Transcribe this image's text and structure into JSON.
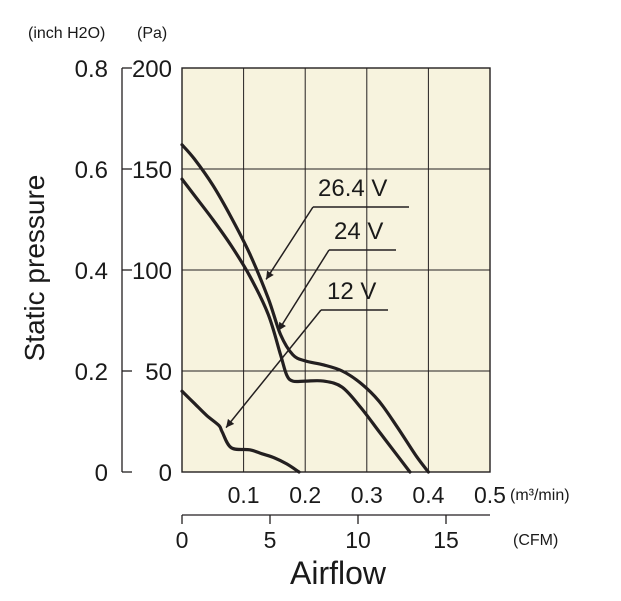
{
  "chart_data": {
    "type": "line",
    "title": "",
    "xlabel": "Airflow",
    "ylabel": "Static pressure",
    "x_unit_primary": "(m³/min)",
    "x_unit_secondary": "(CFM)",
    "y_unit_primary": "(Pa)",
    "y_unit_secondary": "(inch H2O)",
    "xlim": [
      0,
      0.5
    ],
    "ylim": [
      0,
      200
    ],
    "grid": true,
    "colors": {
      "plot_background": "#f7f3de",
      "curve": "#231f20",
      "grid": "#231f20",
      "axis": "#231f20"
    },
    "x_ticks": [
      {
        "value": 0.1,
        "label": "0.1"
      },
      {
        "value": 0.2,
        "label": "0.2"
      },
      {
        "value": 0.3,
        "label": "0.3"
      },
      {
        "value": 0.4,
        "label": "0.4"
      },
      {
        "value": 0.5,
        "label": "0.5"
      }
    ],
    "y_ticks": [
      {
        "value": 0,
        "label": "0"
      },
      {
        "value": 50,
        "label": "50"
      },
      {
        "value": 100,
        "label": "100"
      },
      {
        "value": 150,
        "label": "150"
      },
      {
        "value": 200,
        "label": "200"
      }
    ],
    "y_secondary_ticks": [
      {
        "value": 0,
        "label": "0"
      },
      {
        "value": 0.2,
        "label": "0.2"
      },
      {
        "value": 0.4,
        "label": "0.4"
      },
      {
        "value": 0.6,
        "label": "0.6"
      },
      {
        "value": 0.8,
        "label": "0.8"
      }
    ],
    "cfm_ticks": [
      {
        "value": 0,
        "label": "0"
      },
      {
        "value": 5,
        "label": "5"
      },
      {
        "value": 10,
        "label": "10"
      },
      {
        "value": 15,
        "label": "15"
      }
    ],
    "series": [
      {
        "name": "26.4 V",
        "label_position": "upper",
        "points": [
          [
            0.0,
            162
          ],
          [
            0.02,
            155
          ],
          [
            0.05,
            142
          ],
          [
            0.08,
            126
          ],
          [
            0.11,
            108
          ],
          [
            0.14,
            86
          ],
          [
            0.16,
            68
          ],
          [
            0.18,
            58
          ],
          [
            0.2,
            55
          ],
          [
            0.23,
            53
          ],
          [
            0.26,
            50
          ],
          [
            0.29,
            44
          ],
          [
            0.32,
            35
          ],
          [
            0.35,
            22
          ],
          [
            0.38,
            8
          ],
          [
            0.4,
            0
          ]
        ]
      },
      {
        "name": "24 V",
        "label_position": "middle",
        "points": [
          [
            0.0,
            145
          ],
          [
            0.02,
            137
          ],
          [
            0.05,
            125
          ],
          [
            0.08,
            112
          ],
          [
            0.11,
            97
          ],
          [
            0.14,
            78
          ],
          [
            0.16,
            58
          ],
          [
            0.17,
            48
          ],
          [
            0.18,
            45
          ],
          [
            0.2,
            45
          ],
          [
            0.23,
            45
          ],
          [
            0.26,
            42
          ],
          [
            0.29,
            32
          ],
          [
            0.32,
            20
          ],
          [
            0.35,
            8
          ],
          [
            0.37,
            0
          ]
        ]
      },
      {
        "name": "12 V",
        "label_position": "lower",
        "points": [
          [
            0.0,
            40
          ],
          [
            0.02,
            34
          ],
          [
            0.04,
            28
          ],
          [
            0.06,
            23
          ],
          [
            0.065,
            20
          ],
          [
            0.08,
            12
          ],
          [
            0.11,
            11
          ],
          [
            0.13,
            9
          ],
          [
            0.15,
            7
          ],
          [
            0.17,
            4
          ],
          [
            0.19,
            0
          ]
        ]
      }
    ],
    "annotations": [
      {
        "series": "26.4 V",
        "text": "26.4 V",
        "points_to_x": 0.13
      },
      {
        "series": "24 V",
        "text": "24 V",
        "points_to_x": 0.15
      },
      {
        "series": "12 V",
        "text": "12 V",
        "points_to_x": 0.065
      }
    ]
  }
}
